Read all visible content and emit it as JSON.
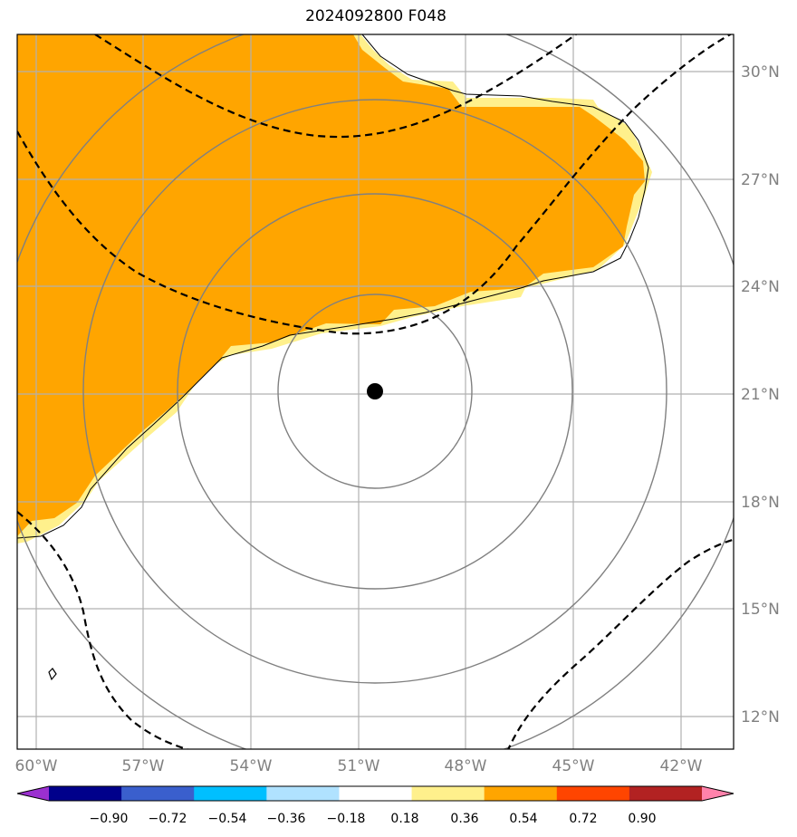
{
  "title": "2024092800 F048",
  "map": {
    "lon_range": [
      -60.5,
      -40.5
    ],
    "lat_range": [
      11.0,
      31.0
    ],
    "lon_ticks": [
      {
        "value": -60,
        "label": "60°W"
      },
      {
        "value": -57,
        "label": "57°W"
      },
      {
        "value": -54,
        "label": "54°W"
      },
      {
        "value": -51,
        "label": "51°W"
      },
      {
        "value": -48,
        "label": "48°W"
      },
      {
        "value": -45,
        "label": "45°W"
      },
      {
        "value": -42,
        "label": "42°W"
      }
    ],
    "lat_ticks": [
      {
        "value": 30,
        "label": "30°N"
      },
      {
        "value": 27,
        "label": "27°N"
      },
      {
        "value": 24,
        "label": "24°N"
      },
      {
        "value": 21,
        "label": "21°N"
      },
      {
        "value": 18,
        "label": "18°N"
      },
      {
        "value": 15,
        "label": "15°N"
      },
      {
        "value": 12,
        "label": "12°N"
      }
    ],
    "storm_center": {
      "lon": -50.5,
      "lat": 21.1
    },
    "range_rings_deg": [
      2.7,
      5.8,
      8.6,
      11.5
    ],
    "colors": {
      "orange": "#ffa500",
      "yellow": "#fff08c",
      "grid": "#b0b0b0",
      "ring": "#808080",
      "tick_label": "#808080"
    }
  },
  "colorbar": {
    "colors": [
      "#9b30d0",
      "#00008b",
      "#3a5fcd",
      "#00bfff",
      "#b0e2ff",
      "#ffffff",
      "#fff08c",
      "#ffa500",
      "#ff4500",
      "#b22222",
      "#ff82ab"
    ],
    "tick_labels": [
      "−0.90",
      "−0.72",
      "−0.54",
      "−0.36",
      "−0.18",
      "0.18",
      "0.36",
      "0.54",
      "0.72",
      "0.90"
    ]
  }
}
